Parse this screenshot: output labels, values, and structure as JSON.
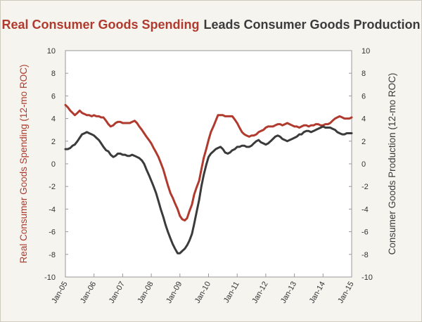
{
  "chart_data": {
    "type": "line",
    "title": {
      "part1": "Real Consumer Goods Spending",
      "part2": "Leads Consumer Goods Production"
    },
    "y_left_label": "Real Consumer Goods Spending (12-mo ROC)",
    "y_right_label": "Consumer Goods Production (12-mo ROC)",
    "ylim": [
      -10,
      10
    ],
    "y_ticks": [
      10,
      8,
      6,
      4,
      2,
      0,
      -2,
      -4,
      -6,
      -8,
      -10
    ],
    "y_tick_labels": [
      "10",
      "8",
      "6",
      "4",
      "2",
      "0",
      "-2",
      "-4",
      "-6",
      "-8",
      "-10"
    ],
    "x_ticks": [
      "Jan-05",
      "Jan-06",
      "Jan-07",
      "Jan-08",
      "Jan-09",
      "Jan-10",
      "Jan-11",
      "Jan-12",
      "Jan-13",
      "Jan-14",
      "Jan-15"
    ],
    "xlim": [
      2005.0,
      2015.0
    ],
    "grid": false,
    "colors": {
      "spending": "#b03a2e",
      "production": "#3b3b3b",
      "axis": "#999999"
    },
    "series": [
      {
        "axis": "left",
        "x": [
          2005.0,
          2005.08,
          2005.17,
          2005.25,
          2005.33,
          2005.42,
          2005.5,
          2005.58,
          2005.67,
          2005.75,
          2005.83,
          2005.92,
          2006.0,
          2006.08,
          2006.17,
          2006.25,
          2006.33,
          2006.42,
          2006.5,
          2006.58,
          2006.67,
          2006.75,
          2006.83,
          2006.92,
          2007.0,
          2007.08,
          2007.17,
          2007.25,
          2007.33,
          2007.42,
          2007.5,
          2007.58,
          2007.67,
          2007.75,
          2007.83,
          2007.92,
          2008.0,
          2008.08,
          2008.17,
          2008.25,
          2008.33,
          2008.42,
          2008.5,
          2008.58,
          2008.67,
          2008.75,
          2008.83,
          2008.92,
          2009.0,
          2009.08,
          2009.17,
          2009.25,
          2009.33,
          2009.42,
          2009.5,
          2009.58,
          2009.67,
          2009.75,
          2009.83,
          2009.92,
          2010.0,
          2010.08,
          2010.17,
          2010.25,
          2010.33,
          2010.42,
          2010.5,
          2010.58,
          2010.67,
          2010.75,
          2010.83,
          2010.92,
          2011.0,
          2011.08,
          2011.17,
          2011.25,
          2011.33,
          2011.42,
          2011.5,
          2011.58,
          2011.67,
          2011.75,
          2011.83,
          2011.92,
          2012.0,
          2012.08,
          2012.17,
          2012.25,
          2012.33,
          2012.42,
          2012.5,
          2012.58,
          2012.67,
          2012.75,
          2012.83,
          2012.92,
          2013.0,
          2013.08,
          2013.17,
          2013.25,
          2013.33,
          2013.42,
          2013.5,
          2013.58,
          2013.67,
          2013.75,
          2013.83,
          2013.92,
          2014.0,
          2014.08,
          2014.17,
          2014.25,
          2014.33,
          2014.42,
          2014.5,
          2014.58,
          2014.67,
          2014.75,
          2014.83,
          2014.92,
          2015.0
        ],
        "values": [
          5.2,
          5.0,
          4.7,
          4.5,
          4.3,
          4.5,
          4.7,
          4.5,
          4.4,
          4.3,
          4.3,
          4.2,
          4.3,
          4.2,
          4.2,
          4.1,
          4.1,
          3.8,
          3.5,
          3.3,
          3.4,
          3.6,
          3.7,
          3.7,
          3.6,
          3.6,
          3.6,
          3.6,
          3.7,
          3.8,
          3.6,
          3.3,
          3.0,
          2.7,
          2.4,
          2.1,
          1.8,
          1.4,
          1.0,
          0.6,
          0.1,
          -0.5,
          -1.2,
          -1.9,
          -2.6,
          -3.0,
          -3.5,
          -4.0,
          -4.6,
          -4.9,
          -5.0,
          -4.8,
          -4.2,
          -3.6,
          -2.7,
          -2.1,
          -1.5,
          -0.5,
          0.5,
          1.3,
          2.1,
          2.8,
          3.3,
          3.8,
          4.3,
          4.3,
          4.3,
          4.2,
          4.2,
          4.2,
          4.2,
          3.9,
          3.6,
          3.2,
          2.8,
          2.6,
          2.5,
          2.4,
          2.5,
          2.5,
          2.6,
          2.8,
          2.9,
          3.0,
          3.2,
          3.3,
          3.3,
          3.3,
          3.4,
          3.5,
          3.5,
          3.4,
          3.5,
          3.6,
          3.5,
          3.4,
          3.3,
          3.3,
          3.2,
          3.3,
          3.4,
          3.4,
          3.3,
          3.4,
          3.4,
          3.5,
          3.5,
          3.4,
          3.4,
          3.5,
          3.5,
          3.6,
          3.8,
          4.0,
          4.1,
          4.2,
          4.1,
          4.0,
          4.0,
          4.0,
          4.1
        ]
      },
      {
        "axis": "right",
        "x": [
          2005.0,
          2005.08,
          2005.17,
          2005.25,
          2005.33,
          2005.42,
          2005.5,
          2005.58,
          2005.67,
          2005.75,
          2005.83,
          2005.92,
          2006.0,
          2006.08,
          2006.17,
          2006.25,
          2006.33,
          2006.42,
          2006.5,
          2006.58,
          2006.67,
          2006.75,
          2006.83,
          2006.92,
          2007.0,
          2007.08,
          2007.17,
          2007.25,
          2007.33,
          2007.42,
          2007.5,
          2007.58,
          2007.67,
          2007.75,
          2007.83,
          2007.92,
          2008.0,
          2008.08,
          2008.17,
          2008.25,
          2008.33,
          2008.42,
          2008.5,
          2008.58,
          2008.67,
          2008.75,
          2008.83,
          2008.92,
          2009.0,
          2009.08,
          2009.17,
          2009.25,
          2009.33,
          2009.42,
          2009.5,
          2009.58,
          2009.67,
          2009.75,
          2009.83,
          2009.92,
          2010.0,
          2010.08,
          2010.17,
          2010.25,
          2010.33,
          2010.42,
          2010.5,
          2010.58,
          2010.67,
          2010.75,
          2010.83,
          2010.92,
          2011.0,
          2011.08,
          2011.17,
          2011.25,
          2011.33,
          2011.42,
          2011.5,
          2011.58,
          2011.67,
          2011.75,
          2011.83,
          2011.92,
          2012.0,
          2012.08,
          2012.17,
          2012.25,
          2012.33,
          2012.42,
          2012.5,
          2012.58,
          2012.67,
          2012.75,
          2012.83,
          2012.92,
          2013.0,
          2013.08,
          2013.17,
          2013.25,
          2013.33,
          2013.42,
          2013.5,
          2013.58,
          2013.67,
          2013.75,
          2013.83,
          2013.92,
          2014.0,
          2014.08,
          2014.17,
          2014.25,
          2014.33,
          2014.42,
          2014.5,
          2014.58,
          2014.67,
          2014.75,
          2014.83,
          2014.92,
          2015.0
        ],
        "values": [
          1.3,
          1.3,
          1.4,
          1.6,
          1.7,
          2.0,
          2.3,
          2.6,
          2.7,
          2.8,
          2.7,
          2.6,
          2.5,
          2.3,
          2.1,
          1.8,
          1.5,
          1.2,
          1.1,
          0.8,
          0.6,
          0.7,
          0.9,
          0.9,
          0.8,
          0.8,
          0.7,
          0.7,
          0.8,
          0.7,
          0.6,
          0.5,
          0.3,
          0.0,
          -0.5,
          -1.0,
          -1.5,
          -2.0,
          -2.6,
          -3.3,
          -4.0,
          -4.7,
          -5.4,
          -6.0,
          -6.6,
          -7.1,
          -7.5,
          -7.9,
          -7.9,
          -7.7,
          -7.5,
          -7.2,
          -6.8,
          -6.2,
          -5.3,
          -4.3,
          -3.2,
          -2.0,
          -1.0,
          -0.1,
          0.6,
          0.9,
          1.1,
          1.3,
          1.4,
          1.5,
          1.3,
          1.0,
          0.9,
          1.0,
          1.2,
          1.3,
          1.5,
          1.5,
          1.6,
          1.6,
          1.5,
          1.5,
          1.6,
          1.8,
          2.0,
          2.1,
          1.9,
          1.8,
          1.7,
          1.8,
          2.0,
          2.2,
          2.4,
          2.5,
          2.4,
          2.2,
          2.1,
          2.0,
          2.1,
          2.2,
          2.3,
          2.4,
          2.6,
          2.6,
          2.8,
          2.9,
          2.9,
          2.8,
          2.9,
          3.0,
          3.1,
          3.2,
          3.3,
          3.2,
          3.2,
          3.2,
          3.1,
          3.0,
          2.8,
          2.7,
          2.6,
          2.6,
          2.7,
          2.7,
          2.7
        ]
      }
    ]
  }
}
